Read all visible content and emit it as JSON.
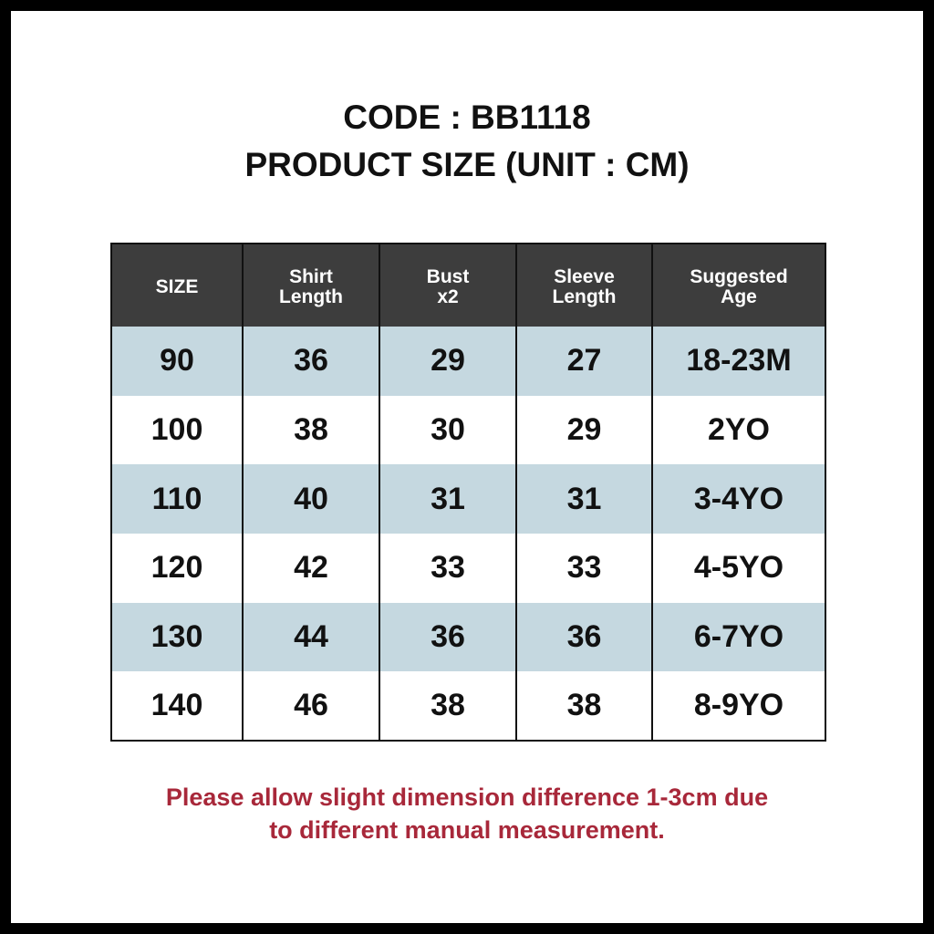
{
  "title": {
    "code": "CODE : BB1118",
    "subtitle": "PRODUCT SIZE (UNIT : CM)"
  },
  "table": {
    "headers": [
      [
        "SIZE",
        ""
      ],
      [
        "Shirt",
        "Length"
      ],
      [
        "Bust",
        "x2"
      ],
      [
        "Sleeve",
        "Length"
      ],
      [
        "Suggested",
        "Age"
      ]
    ],
    "rows": [
      [
        "90",
        "36",
        "29",
        "27",
        "18-23M"
      ],
      [
        "100",
        "38",
        "30",
        "29",
        "2YO"
      ],
      [
        "110",
        "40",
        "31",
        "31",
        "3-4YO"
      ],
      [
        "120",
        "42",
        "33",
        "33",
        "4-5YO"
      ],
      [
        "130",
        "44",
        "36",
        "36",
        "6-7YO"
      ],
      [
        "140",
        "46",
        "38",
        "38",
        "8-9YO"
      ]
    ]
  },
  "note": {
    "line1": "Please allow slight dimension difference 1-3cm due",
    "line2": "to different manual measurement."
  },
  "colors": {
    "header_bg": "#3d3d3d",
    "alt_row": "#c5d8e0",
    "note": "#a8283a"
  }
}
